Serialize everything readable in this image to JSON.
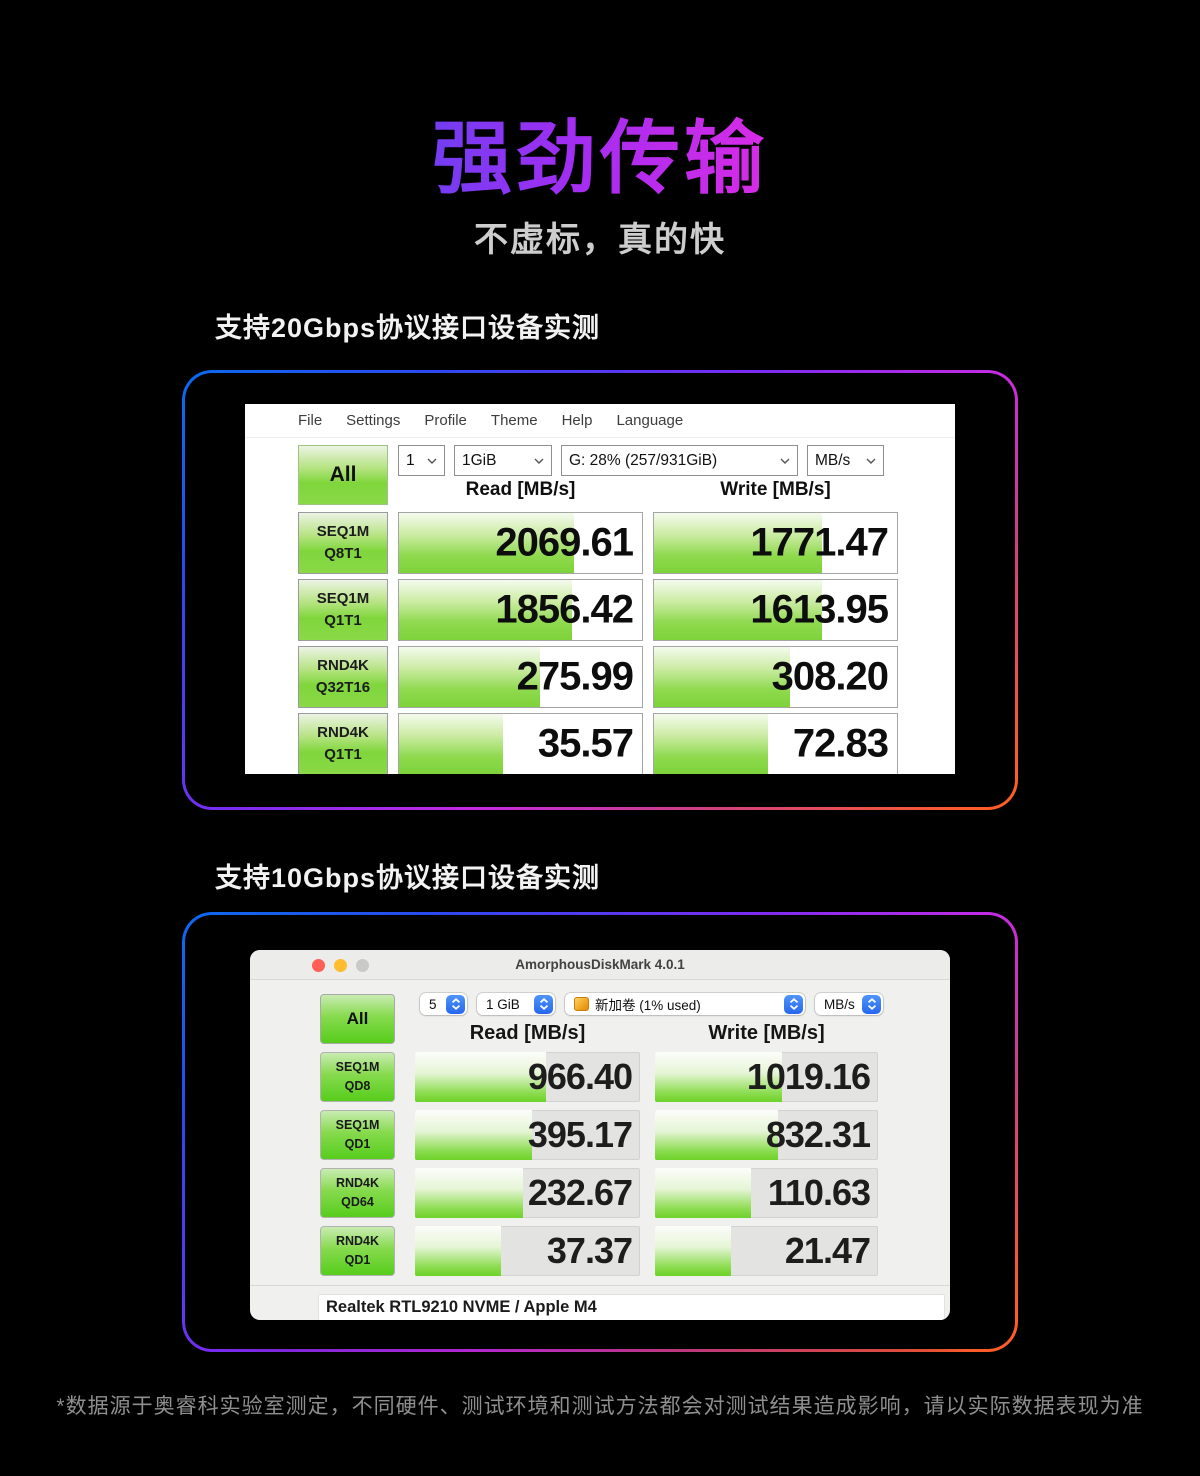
{
  "page": {
    "title": "强劲传输",
    "subtitle": "不虚标，真的快",
    "footnote": "*数据源于奥睿科实验室测定，不同硬件、测试环境和测试方法都会对测试结果造成影响，请以实际数据表现为准",
    "colors": {
      "background": "#000000",
      "title_gradient": [
        "#2f7bf7",
        "#5a46f2",
        "#a32df2",
        "#e52be2",
        "#ff7b32"
      ],
      "panel_border_gradient": [
        "#0a6bf0",
        "#7a2cf2",
        "#c62be4",
        "#ff5d28"
      ],
      "bar_green": "#7ed33a",
      "traffic_red": "#ff5f57",
      "traffic_yellow": "#febc2e",
      "traffic_gray": "#c9c9c7",
      "stepper_blue": "#2e7cf6"
    }
  },
  "section_20gbps": {
    "label": "支持20Gbps协议接口设备实测",
    "window": {
      "menu": [
        "File",
        "Settings",
        "Profile",
        "Theme",
        "Help",
        "Language"
      ],
      "all_button": "All",
      "threads_select": "1",
      "size_select": "1GiB",
      "drive_select": "G: 28% (257/931GiB)",
      "unit_select": "MB/s",
      "read_header": "Read [MB/s]",
      "write_header": "Write [MB/s]",
      "rows": [
        {
          "label1": "SEQ1M",
          "label2": "Q8T1",
          "read": "2069.61",
          "write": "1771.47",
          "read_fill": 72,
          "write_fill": 69
        },
        {
          "label1": "SEQ1M",
          "label2": "Q1T1",
          "read": "1856.42",
          "write": "1613.95",
          "read_fill": 71,
          "write_fill": 69
        },
        {
          "label1": "RND4K",
          "label2": "Q32T16",
          "read": "275.99",
          "write": "308.20",
          "read_fill": 58,
          "write_fill": 56
        },
        {
          "label1": "RND4K",
          "label2": "Q1T1",
          "read": "35.57",
          "write": "72.83",
          "read_fill": 43,
          "write_fill": 47
        }
      ]
    }
  },
  "section_10gbps": {
    "label": "支持10Gbps协议接口设备实测",
    "window": {
      "title": "AmorphousDiskMark 4.0.1",
      "all_button": "All",
      "trials_select": "5",
      "size_select": "1 GiB",
      "volume_select": "新加卷 (1% used)",
      "unit_select": "MB/s",
      "read_header": "Read [MB/s]",
      "write_header": "Write [MB/s]",
      "rows": [
        {
          "label1": "SEQ1M",
          "label2": "QD8",
          "read": "966.40",
          "write": "1019.16",
          "read_fill": 58,
          "write_fill": 57
        },
        {
          "label1": "SEQ1M",
          "label2": "QD1",
          "read": "395.17",
          "write": "832.31",
          "read_fill": 52,
          "write_fill": 55
        },
        {
          "label1": "RND4K",
          "label2": "QD64",
          "read": "232.67",
          "write": "110.63",
          "read_fill": 48,
          "write_fill": 43
        },
        {
          "label1": "RND4K",
          "label2": "QD1",
          "read": "37.37",
          "write": "21.47",
          "read_fill": 38,
          "write_fill": 34
        }
      ],
      "device_info": "Realtek RTL9210 NVME / Apple M4"
    }
  }
}
